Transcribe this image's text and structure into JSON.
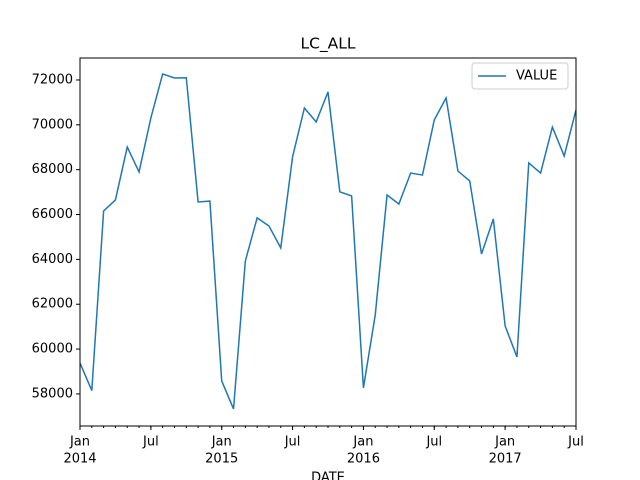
{
  "chart_data": {
    "type": "line",
    "title": "LC_ALL",
    "xlabel": "DATE",
    "x": [
      "2014-01",
      "2014-02",
      "2014-03",
      "2014-04",
      "2014-05",
      "2014-06",
      "2014-07",
      "2014-08",
      "2014-09",
      "2014-10",
      "2014-11",
      "2014-12",
      "2015-01",
      "2015-02",
      "2015-03",
      "2015-04",
      "2015-05",
      "2015-06",
      "2015-07",
      "2015-08",
      "2015-09",
      "2015-10",
      "2015-11",
      "2015-12",
      "2016-01",
      "2016-02",
      "2016-03",
      "2016-04",
      "2016-05",
      "2016-06",
      "2016-07",
      "2016-08",
      "2016-09",
      "2016-10",
      "2016-11",
      "2016-12",
      "2017-01",
      "2017-02",
      "2017-03",
      "2017-04",
      "2017-05",
      "2017-06",
      "2017-07"
    ],
    "series": [
      {
        "name": "VALUE",
        "color": "#1f77b4",
        "values": [
          59380,
          58150,
          66160,
          66650,
          69010,
          67900,
          70310,
          72270,
          72090,
          72100,
          66560,
          66600,
          58580,
          57330,
          63930,
          65850,
          65490,
          64510,
          68570,
          70750,
          70130,
          71470,
          67010,
          66830,
          58270,
          61520,
          66870,
          66470,
          67850,
          67760,
          70220,
          71200,
          67940,
          67500,
          64240,
          65800,
          61030,
          59650,
          68300,
          67850,
          69900,
          68610,
          70660
        ]
      }
    ],
    "xlim": [
      "2014-01",
      "2017-07"
    ],
    "xticks": [
      {
        "value": "2014-01",
        "label": "Jan",
        "year": "2014"
      },
      {
        "value": "2014-07",
        "label": "Jul"
      },
      {
        "value": "2015-01",
        "label": "Jan",
        "year": "2015"
      },
      {
        "value": "2015-07",
        "label": "Jul"
      },
      {
        "value": "2016-01",
        "label": "Jan",
        "year": "2016"
      },
      {
        "value": "2016-07",
        "label": "Jul"
      },
      {
        "value": "2017-01",
        "label": "Jan",
        "year": "2017"
      },
      {
        "value": "2017-07",
        "label": "Jul"
      }
    ],
    "ylim": [
      56570,
      72980
    ],
    "yticks": [
      58000,
      60000,
      62000,
      64000,
      66000,
      68000,
      70000,
      72000
    ],
    "legend": "upper right"
  }
}
